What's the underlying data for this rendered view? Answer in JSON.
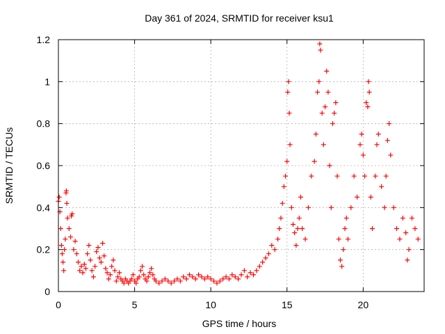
{
  "chart_data": {
    "type": "scatter",
    "title": "Day 361 of 2024, SRMTID for receiver ksu1",
    "xlabel": "GPS time / hours",
    "ylabel": "SRMTID / TECUs",
    "xlim": [
      0,
      24
    ],
    "ylim": [
      0,
      1.2
    ],
    "x_ticks": [
      0,
      5,
      10,
      15,
      20
    ],
    "x_tick_labels": [
      "0",
      "5",
      "10",
      "15",
      "20"
    ],
    "y_ticks": [
      0,
      0.2,
      0.4,
      0.6,
      0.8,
      1.0,
      1.2
    ],
    "y_tick_labels": [
      "0",
      "0.2",
      "0.4",
      "0.6",
      "0.8",
      "1",
      "1.2"
    ],
    "grid": true,
    "marker": "+",
    "color": "#ff0000",
    "series": [
      {
        "name": "SRMTID",
        "points": [
          [
            0.0,
            0.43
          ],
          [
            0.05,
            0.45
          ],
          [
            0.1,
            0.38
          ],
          [
            0.15,
            0.3
          ],
          [
            0.2,
            0.22
          ],
          [
            0.25,
            0.18
          ],
          [
            0.3,
            0.14
          ],
          [
            0.35,
            0.1
          ],
          [
            0.4,
            0.2
          ],
          [
            0.45,
            0.25
          ],
          [
            0.5,
            0.47
          ],
          [
            0.52,
            0.48
          ],
          [
            0.55,
            0.42
          ],
          [
            0.6,
            0.35
          ],
          [
            0.7,
            0.3
          ],
          [
            0.8,
            0.26
          ],
          [
            0.85,
            0.36
          ],
          [
            0.9,
            0.37
          ],
          [
            1.0,
            0.2
          ],
          [
            1.1,
            0.24
          ],
          [
            1.2,
            0.18
          ],
          [
            1.3,
            0.14
          ],
          [
            1.4,
            0.1
          ],
          [
            1.5,
            0.12
          ],
          [
            1.6,
            0.09
          ],
          [
            1.7,
            0.13
          ],
          [
            1.8,
            0.11
          ],
          [
            1.9,
            0.18
          ],
          [
            2.0,
            0.22
          ],
          [
            2.1,
            0.15
          ],
          [
            2.2,
            0.1
          ],
          [
            2.3,
            0.07
          ],
          [
            2.4,
            0.12
          ],
          [
            2.5,
            0.19
          ],
          [
            2.6,
            0.21
          ],
          [
            2.7,
            0.16
          ],
          [
            2.8,
            0.14
          ],
          [
            2.9,
            0.23
          ],
          [
            3.0,
            0.17
          ],
          [
            3.1,
            0.11
          ],
          [
            3.2,
            0.09
          ],
          [
            3.3,
            0.06
          ],
          [
            3.4,
            0.08
          ],
          [
            3.5,
            0.12
          ],
          [
            3.6,
            0.15
          ],
          [
            3.7,
            0.1
          ],
          [
            3.8,
            0.05
          ],
          [
            3.9,
            0.07
          ],
          [
            4.0,
            0.09
          ],
          [
            4.1,
            0.06
          ],
          [
            4.2,
            0.05
          ],
          [
            4.3,
            0.04
          ],
          [
            4.4,
            0.06
          ],
          [
            4.5,
            0.05
          ],
          [
            4.6,
            0.04
          ],
          [
            4.7,
            0.05
          ],
          [
            4.8,
            0.06
          ],
          [
            4.9,
            0.08
          ],
          [
            5.0,
            0.05
          ],
          [
            5.1,
            0.04
          ],
          [
            5.2,
            0.06
          ],
          [
            5.3,
            0.07
          ],
          [
            5.4,
            0.1
          ],
          [
            5.5,
            0.12
          ],
          [
            5.6,
            0.08
          ],
          [
            5.7,
            0.06
          ],
          [
            5.8,
            0.05
          ],
          [
            5.9,
            0.07
          ],
          [
            6.0,
            0.09
          ],
          [
            6.1,
            0.11
          ],
          [
            6.2,
            0.08
          ],
          [
            6.3,
            0.06
          ],
          [
            6.4,
            0.05
          ],
          [
            6.6,
            0.04
          ],
          [
            6.8,
            0.05
          ],
          [
            7.0,
            0.06
          ],
          [
            7.2,
            0.05
          ],
          [
            7.4,
            0.04
          ],
          [
            7.6,
            0.05
          ],
          [
            7.8,
            0.06
          ],
          [
            8.0,
            0.05
          ],
          [
            8.2,
            0.07
          ],
          [
            8.4,
            0.06
          ],
          [
            8.6,
            0.08
          ],
          [
            8.8,
            0.07
          ],
          [
            9.0,
            0.06
          ],
          [
            9.2,
            0.08
          ],
          [
            9.4,
            0.07
          ],
          [
            9.6,
            0.06
          ],
          [
            9.8,
            0.07
          ],
          [
            10.0,
            0.06
          ],
          [
            10.2,
            0.05
          ],
          [
            10.4,
            0.04
          ],
          [
            10.6,
            0.05
          ],
          [
            10.8,
            0.06
          ],
          [
            11.0,
            0.07
          ],
          [
            11.2,
            0.06
          ],
          [
            11.4,
            0.08
          ],
          [
            11.6,
            0.07
          ],
          [
            11.8,
            0.06
          ],
          [
            12.0,
            0.08
          ],
          [
            12.2,
            0.1
          ],
          [
            12.4,
            0.07
          ],
          [
            12.6,
            0.09
          ],
          [
            12.8,
            0.08
          ],
          [
            13.0,
            0.1
          ],
          [
            13.2,
            0.12
          ],
          [
            13.4,
            0.14
          ],
          [
            13.6,
            0.16
          ],
          [
            13.8,
            0.18
          ],
          [
            14.0,
            0.22
          ],
          [
            14.2,
            0.2
          ],
          [
            14.4,
            0.25
          ],
          [
            14.5,
            0.3
          ],
          [
            14.6,
            0.35
          ],
          [
            14.7,
            0.42
          ],
          [
            14.8,
            0.5
          ],
          [
            14.9,
            0.55
          ],
          [
            15.0,
            0.62
          ],
          [
            15.05,
            0.95
          ],
          [
            15.1,
            1.0
          ],
          [
            15.15,
            0.85
          ],
          [
            15.2,
            0.7
          ],
          [
            15.3,
            0.4
          ],
          [
            15.4,
            0.32
          ],
          [
            15.5,
            0.28
          ],
          [
            15.6,
            0.22
          ],
          [
            15.7,
            0.3
          ],
          [
            15.8,
            0.35
          ],
          [
            15.9,
            0.45
          ],
          [
            16.0,
            0.3
          ],
          [
            16.2,
            0.25
          ],
          [
            16.4,
            0.4
          ],
          [
            16.6,
            0.55
          ],
          [
            16.8,
            0.62
          ],
          [
            16.9,
            0.75
          ],
          [
            17.0,
            0.95
          ],
          [
            17.1,
            1.0
          ],
          [
            17.15,
            1.18
          ],
          [
            17.2,
            1.15
          ],
          [
            17.3,
            0.85
          ],
          [
            17.4,
            0.7
          ],
          [
            17.5,
            0.88
          ],
          [
            17.6,
            1.05
          ],
          [
            17.7,
            0.95
          ],
          [
            17.8,
            0.6
          ],
          [
            17.9,
            0.4
          ],
          [
            18.0,
            0.8
          ],
          [
            18.1,
            0.85
          ],
          [
            18.2,
            0.9
          ],
          [
            18.3,
            0.55
          ],
          [
            18.4,
            0.25
          ],
          [
            18.5,
            0.15
          ],
          [
            18.6,
            0.12
          ],
          [
            18.7,
            0.2
          ],
          [
            18.8,
            0.3
          ],
          [
            18.9,
            0.35
          ],
          [
            19.0,
            0.25
          ],
          [
            19.2,
            0.4
          ],
          [
            19.4,
            0.55
          ],
          [
            19.6,
            0.45
          ],
          [
            19.8,
            0.7
          ],
          [
            19.9,
            0.75
          ],
          [
            20.0,
            0.65
          ],
          [
            20.1,
            0.55
          ],
          [
            20.2,
            0.9
          ],
          [
            20.3,
            0.88
          ],
          [
            20.35,
            1.0
          ],
          [
            20.4,
            0.95
          ],
          [
            20.5,
            0.45
          ],
          [
            20.6,
            0.3
          ],
          [
            20.8,
            0.55
          ],
          [
            20.9,
            0.7
          ],
          [
            21.0,
            0.75
          ],
          [
            21.2,
            0.5
          ],
          [
            21.4,
            0.4
          ],
          [
            21.5,
            0.55
          ],
          [
            21.6,
            0.72
          ],
          [
            21.7,
            0.8
          ],
          [
            21.8,
            0.65
          ],
          [
            22.0,
            0.4
          ],
          [
            22.2,
            0.3
          ],
          [
            22.4,
            0.25
          ],
          [
            22.6,
            0.35
          ],
          [
            22.8,
            0.28
          ],
          [
            22.9,
            0.15
          ],
          [
            23.0,
            0.2
          ],
          [
            23.2,
            0.35
          ],
          [
            23.4,
            0.3
          ],
          [
            23.6,
            0.25
          ]
        ]
      }
    ]
  }
}
